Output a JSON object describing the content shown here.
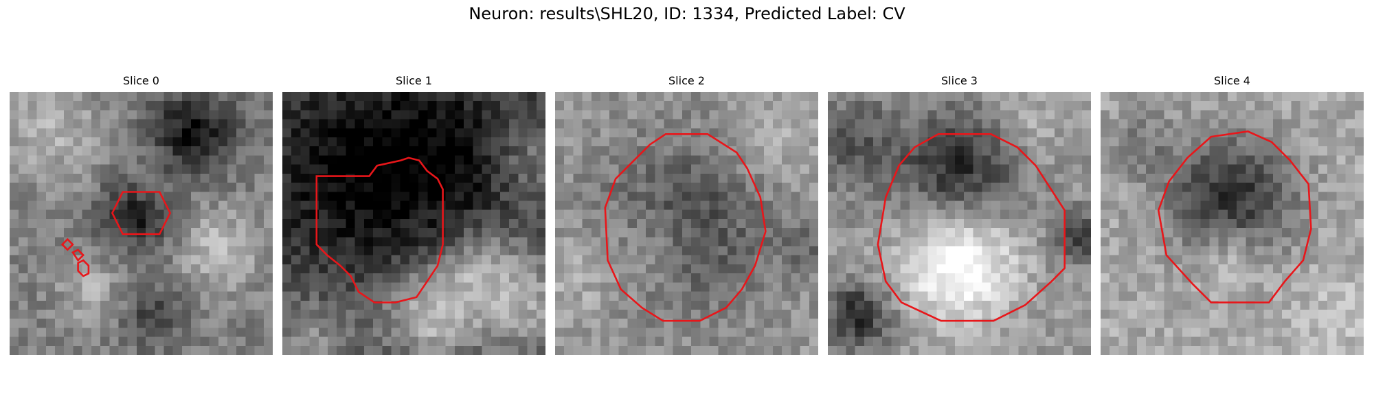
{
  "suptitle": "Neuron: results\\SHL20, ID: 1334, Predicted Label: CV",
  "contour_color": "#e8161a",
  "panels": [
    {
      "title": "Slice 0",
      "contours": [
        [
          [
            0.43,
            0.38
          ],
          [
            0.57,
            0.38
          ],
          [
            0.61,
            0.46
          ],
          [
            0.57,
            0.54
          ],
          [
            0.43,
            0.54
          ],
          [
            0.39,
            0.46
          ]
        ],
        [
          [
            0.2,
            0.58
          ],
          [
            0.22,
            0.56
          ],
          [
            0.24,
            0.58
          ],
          [
            0.22,
            0.6
          ]
        ],
        [
          [
            0.24,
            0.61
          ],
          [
            0.26,
            0.6
          ],
          [
            0.28,
            0.62
          ],
          [
            0.26,
            0.64
          ]
        ],
        [
          [
            0.28,
            0.64
          ],
          [
            0.3,
            0.66
          ],
          [
            0.3,
            0.69
          ],
          [
            0.28,
            0.7
          ],
          [
            0.26,
            0.68
          ],
          [
            0.26,
            0.65
          ]
        ]
      ]
    },
    {
      "title": "Slice 1",
      "contours": [
        [
          [
            0.13,
            0.32
          ],
          [
            0.33,
            0.32
          ],
          [
            0.36,
            0.28
          ],
          [
            0.45,
            0.26
          ],
          [
            0.48,
            0.25
          ],
          [
            0.52,
            0.26
          ],
          [
            0.55,
            0.3
          ],
          [
            0.59,
            0.33
          ],
          [
            0.61,
            0.37
          ],
          [
            0.61,
            0.58
          ],
          [
            0.59,
            0.66
          ],
          [
            0.55,
            0.72
          ],
          [
            0.51,
            0.78
          ],
          [
            0.43,
            0.8
          ],
          [
            0.35,
            0.8
          ],
          [
            0.29,
            0.76
          ],
          [
            0.26,
            0.7
          ],
          [
            0.22,
            0.66
          ],
          [
            0.17,
            0.62
          ],
          [
            0.13,
            0.58
          ]
        ]
      ]
    },
    {
      "title": "Slice 2",
      "contours": [
        [
          [
            0.42,
            0.16
          ],
          [
            0.58,
            0.16
          ],
          [
            0.69,
            0.23
          ],
          [
            0.73,
            0.29
          ],
          [
            0.78,
            0.4
          ],
          [
            0.8,
            0.53
          ],
          [
            0.76,
            0.66
          ],
          [
            0.71,
            0.75
          ],
          [
            0.65,
            0.82
          ],
          [
            0.55,
            0.87
          ],
          [
            0.41,
            0.87
          ],
          [
            0.33,
            0.82
          ],
          [
            0.25,
            0.75
          ],
          [
            0.2,
            0.64
          ],
          [
            0.19,
            0.44
          ],
          [
            0.23,
            0.33
          ],
          [
            0.3,
            0.26
          ],
          [
            0.36,
            0.2
          ]
        ]
      ]
    },
    {
      "title": "Slice 3",
      "contours": [
        [
          [
            0.42,
            0.16
          ],
          [
            0.62,
            0.16
          ],
          [
            0.72,
            0.21
          ],
          [
            0.79,
            0.28
          ],
          [
            0.9,
            0.45
          ],
          [
            0.9,
            0.67
          ],
          [
            0.85,
            0.72
          ],
          [
            0.75,
            0.81
          ],
          [
            0.63,
            0.87
          ],
          [
            0.43,
            0.87
          ],
          [
            0.28,
            0.8
          ],
          [
            0.22,
            0.72
          ],
          [
            0.19,
            0.58
          ],
          [
            0.22,
            0.4
          ],
          [
            0.27,
            0.28
          ],
          [
            0.33,
            0.21
          ]
        ]
      ]
    },
    {
      "title": "Slice 4",
      "contours": [
        [
          [
            0.42,
            0.17
          ],
          [
            0.56,
            0.15
          ],
          [
            0.65,
            0.19
          ],
          [
            0.72,
            0.26
          ],
          [
            0.79,
            0.35
          ],
          [
            0.8,
            0.52
          ],
          [
            0.77,
            0.64
          ],
          [
            0.7,
            0.72
          ],
          [
            0.64,
            0.8
          ],
          [
            0.42,
            0.8
          ],
          [
            0.35,
            0.73
          ],
          [
            0.25,
            0.62
          ],
          [
            0.22,
            0.45
          ],
          [
            0.26,
            0.34
          ],
          [
            0.33,
            0.25
          ]
        ]
      ]
    }
  ]
}
